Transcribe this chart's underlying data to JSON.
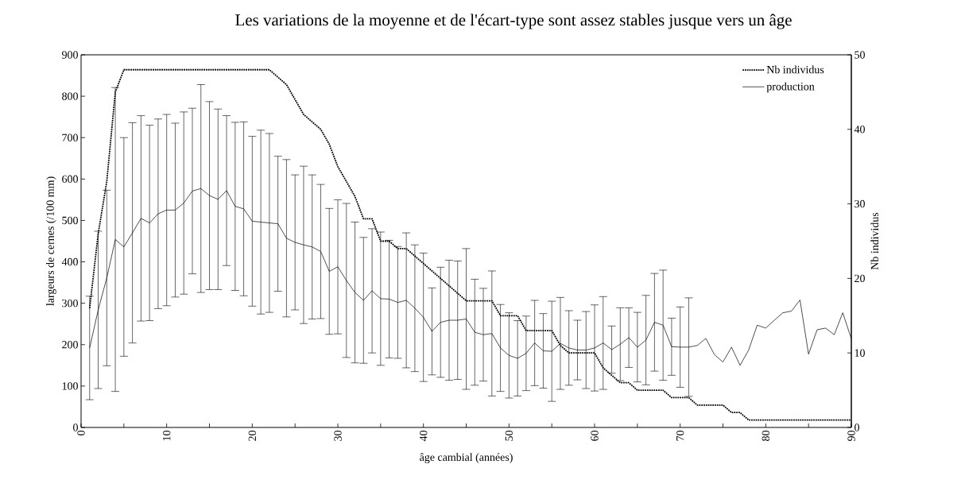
{
  "chart_data": {
    "type": "line",
    "title": "Les variations de la moyenne et de l'écart-type sont assez stables jusque vers un âge",
    "xlabel": "âge cambial (années)",
    "ylabel": "largeurs de cernes (/100 mm)",
    "y2label": "Nb individus",
    "x": [
      1,
      2,
      3,
      4,
      5,
      6,
      7,
      8,
      9,
      10,
      11,
      12,
      13,
      14,
      15,
      16,
      17,
      18,
      19,
      20,
      21,
      22,
      23,
      24,
      25,
      26,
      27,
      28,
      29,
      30,
      31,
      32,
      33,
      34,
      35,
      36,
      37,
      38,
      39,
      40,
      41,
      42,
      43,
      44,
      45,
      46,
      47,
      48,
      49,
      50,
      51,
      52,
      53,
      54,
      55,
      56,
      57,
      58,
      59,
      60,
      61,
      62,
      63,
      64,
      65,
      66,
      67,
      68,
      69,
      70,
      71,
      72,
      73,
      74,
      75,
      76,
      77,
      78,
      79,
      80,
      81,
      82,
      83,
      84,
      85,
      86,
      87,
      88,
      89,
      90
    ],
    "xlim": [
      0,
      90
    ],
    "xticks": [
      0,
      {
        "value": 5,
        "label": null
      },
      10,
      {
        "value": 15,
        "label": null
      },
      20,
      {
        "value": 25,
        "label": null
      },
      30,
      {
        "value": 35,
        "label": null
      },
      40,
      {
        "value": 45,
        "label": null
      },
      50,
      {
        "value": 55,
        "label": null
      },
      60,
      {
        "value": 65,
        "label": null
      },
      70,
      {
        "value": 75,
        "label": null
      },
      80,
      {
        "value": 85,
        "label": null
      },
      90
    ],
    "ylim": [
      0,
      900
    ],
    "yticks": [
      0,
      100,
      200,
      300,
      400,
      500,
      600,
      700,
      800,
      900
    ],
    "y2lim": [
      0,
      50
    ],
    "y2ticks": [
      0,
      10,
      20,
      30,
      40,
      50
    ],
    "legend": "top right",
    "series": [
      {
        "name": "Nb individus",
        "color": "#000000",
        "axis": "y2",
        "line_style": "dotted",
        "values": [
          16,
          26,
          33,
          45,
          48,
          48,
          48,
          48,
          48,
          48,
          48,
          48,
          48,
          48,
          48,
          48,
          48,
          48,
          48,
          48,
          48,
          48,
          47,
          46,
          44,
          42,
          41,
          40,
          38,
          35,
          33,
          31,
          28,
          28,
          25,
          25,
          24,
          24,
          23,
          22,
          21,
          20,
          19,
          18,
          17,
          17,
          17,
          17,
          15,
          15,
          15,
          13,
          13,
          13,
          13,
          11,
          10,
          10,
          10,
          10,
          8,
          7,
          6,
          6,
          5,
          5,
          5,
          5,
          4,
          4,
          4,
          3,
          3,
          3,
          3,
          2,
          2,
          1,
          1,
          1,
          1,
          1,
          1,
          1,
          1,
          1,
          1,
          1,
          1,
          1
        ]
      },
      {
        "name": "production",
        "color": "#000000",
        "line_style": "solid",
        "values": [
          192,
          284,
          361,
          454,
          436,
          470,
          505,
          494,
          516,
          525,
          525,
          542,
          571,
          577,
          560,
          551,
          572,
          534,
          528,
          498,
          496,
          494,
          492,
          457,
          447,
          441,
          436,
          425,
          377,
          388,
          355,
          326,
          307,
          330,
          311,
          310,
          302,
          307,
          288,
          266,
          232,
          254,
          259,
          259,
          262,
          230,
          224,
          227,
          192,
          174,
          167,
          179,
          204,
          185,
          184,
          203,
          192,
          187,
          187,
          192,
          204,
          188,
          201,
          217,
          194,
          211,
          254,
          247,
          195,
          194,
          194,
          198,
          215,
          176,
          158,
          194,
          150,
          187,
          247,
          240,
          259,
          277,
          281,
          308,
          177,
          236,
          240,
          224,
          277,
          214
        ],
        "errors": [
          125,
          190,
          212,
          367,
          264,
          266,
          248,
          236,
          229,
          231,
          210,
          220,
          200,
          251,
          227,
          218,
          181,
          203,
          210,
          205,
          222,
          216,
          163,
          190,
          163,
          190,
          174,
          162,
          152,
          162,
          186,
          170,
          152,
          150,
          161,
          142,
          135,
          163,
          153,
          155,
          105,
          133,
          145,
          143,
          170,
          128,
          112,
          151,
          105,
          103,
          91,
          90,
          103,
          90,
          121,
          111,
          90,
          72,
          93,
          104,
          112,
          57,
          88,
          72,
          84,
          108,
          118,
          133,
          69,
          97,
          119,
          null,
          null,
          null,
          null,
          null,
          null,
          null,
          null,
          null,
          null,
          null,
          null,
          null,
          null,
          null,
          null,
          null,
          null,
          null
        ]
      }
    ]
  }
}
